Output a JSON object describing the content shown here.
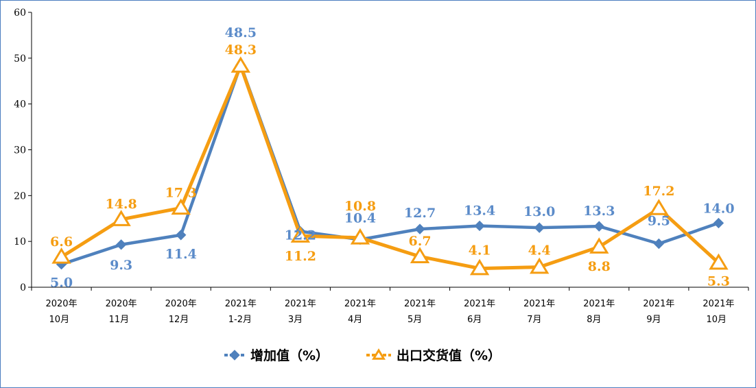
{
  "chart_data": {
    "type": "line",
    "categories": [
      [
        "2020年",
        "10月"
      ],
      [
        "2020年",
        "11月"
      ],
      [
        "2020年",
        "12月"
      ],
      [
        "2021年",
        "1-2月"
      ],
      [
        "2021年",
        "3月"
      ],
      [
        "2021年",
        "4月"
      ],
      [
        "2021年",
        "5月"
      ],
      [
        "2021年",
        "6月"
      ],
      [
        "2021年",
        "7月"
      ],
      [
        "2021年",
        "8月"
      ],
      [
        "2021年",
        "9月"
      ],
      [
        "2021年",
        "10月"
      ]
    ],
    "series": [
      {
        "name": "增加值（%）",
        "color": "#4f81bd",
        "marker": "diamond",
        "values": [
          5.0,
          9.3,
          11.4,
          48.5,
          12.2,
          10.4,
          12.7,
          13.4,
          13.0,
          13.3,
          9.5,
          14.0
        ],
        "labels": [
          "5.0",
          "9.3",
          "11.4",
          "48.5",
          "12.2",
          "10.4",
          "12.7",
          "13.4",
          "13.0",
          "13.3",
          "9.5",
          "14.0"
        ]
      },
      {
        "name": "出口交货值（%）",
        "color": "#f59d12",
        "marker": "triangle",
        "values": [
          6.6,
          14.8,
          17.3,
          48.3,
          11.2,
          10.8,
          6.7,
          4.1,
          4.4,
          8.8,
          17.2,
          5.3
        ],
        "labels": [
          "6.6",
          "14.8",
          "17.3",
          "48.3",
          "11.2",
          "10.8",
          "6.7",
          "4.1",
          "4.4",
          "8.8",
          "17.2",
          "5.3"
        ]
      }
    ],
    "ylim": [
      0,
      60
    ],
    "yticks": [
      "0",
      "10",
      "20",
      "30",
      "40",
      "50",
      "60"
    ],
    "grid": false,
    "legend": "bottom"
  }
}
